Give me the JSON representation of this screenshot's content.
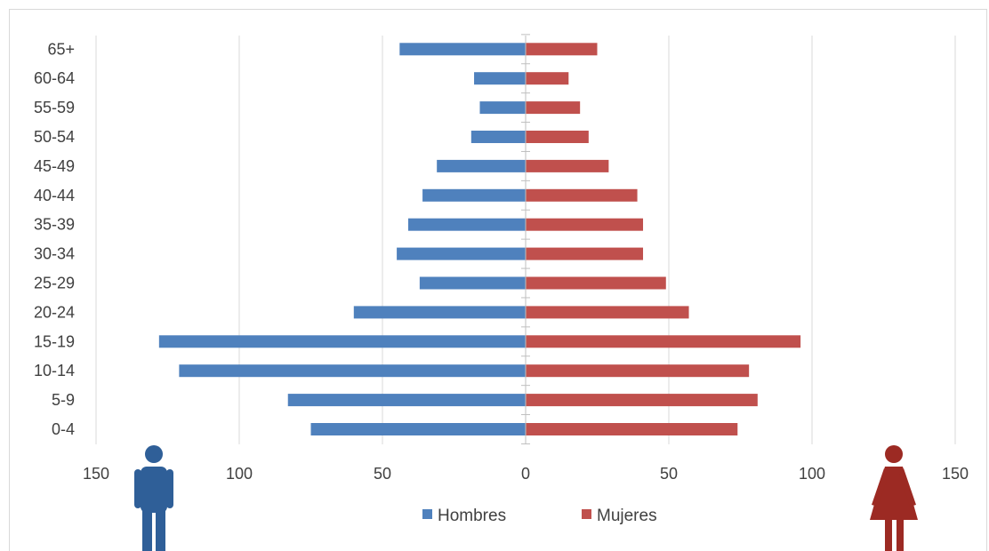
{
  "chart_data": {
    "type": "bar",
    "orientation": "horizontal",
    "layout": "population-pyramid",
    "categories": [
      "0-4",
      "5-9",
      "10-14",
      "15-19",
      "20-24",
      "25-29",
      "30-34",
      "35-39",
      "40-44",
      "45-49",
      "50-54",
      "55-59",
      "60-64",
      "65+"
    ],
    "series": [
      {
        "name": "Hombres",
        "color": "#4f81bd",
        "side": "left",
        "values": [
          75,
          83,
          121,
          128,
          60,
          37,
          45,
          41,
          36,
          31,
          19,
          16,
          18,
          44
        ]
      },
      {
        "name": "Mujeres",
        "color": "#c0504d",
        "side": "right",
        "values": [
          74,
          81,
          78,
          96,
          57,
          49,
          41,
          41,
          39,
          29,
          22,
          19,
          15,
          25
        ]
      }
    ],
    "xlim": [
      -150,
      150
    ],
    "xticks": [
      -150,
      -100,
      -50,
      0,
      50,
      100,
      150
    ],
    "xtick_labels": [
      "150",
      "100",
      "50",
      "0",
      "50",
      "100",
      "150"
    ],
    "grid": "vertical",
    "legend_position": "bottom"
  },
  "icons": {
    "male": {
      "name": "male-person-icon",
      "color": "#2f5f98"
    },
    "female": {
      "name": "female-person-icon",
      "color": "#9c2a23"
    }
  }
}
